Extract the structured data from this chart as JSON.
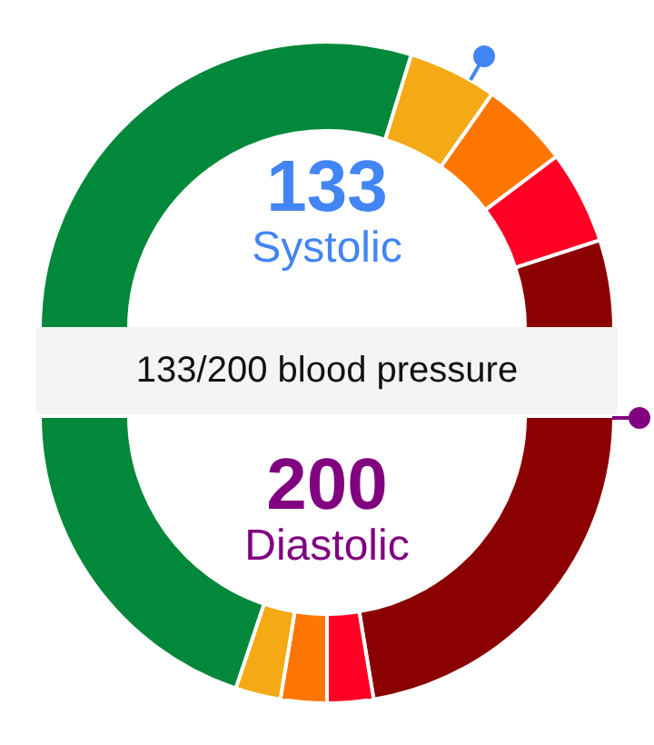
{
  "chart_data": [
    {
      "type": "donut",
      "title": "133/200 blood pressure",
      "annotations": [
        "133",
        "Systolic"
      ],
      "categories": [
        null,
        null,
        null,
        null,
        null
      ],
      "values": [
        59.5,
        10,
        10,
        10.5,
        10
      ],
      "colors": [
        "#02883a",
        "#f4a915",
        "#fd7601",
        "#ff0024",
        "#8b0000"
      ]
    },
    {
      "type": "donut",
      "annotations": [
        "200",
        "Diastolic"
      ],
      "categories": [
        null,
        null,
        null,
        null,
        null
      ],
      "values": [
        44.8,
        5.2,
        5.2,
        5.1,
        39.7
      ],
      "colors": [
        "#8b0000",
        "#ff0024",
        "#fd7601",
        "#f4a915",
        "#02883a"
      ]
    }
  ]
}
